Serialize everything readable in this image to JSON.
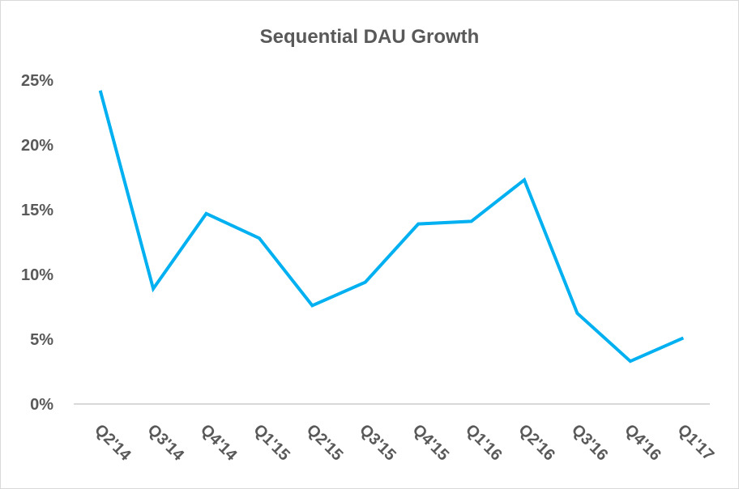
{
  "chart_data": {
    "type": "line",
    "title": "Sequential DAU Growth",
    "xlabel": "",
    "ylabel": "",
    "categories": [
      "Q2'14",
      "Q3'14",
      "Q4'14",
      "Q1'15",
      "Q2'15",
      "Q3'15",
      "Q4'15",
      "Q1'16",
      "Q2'16",
      "Q3'16",
      "Q4'16",
      "Q1'17"
    ],
    "series": [
      {
        "name": "Sequential DAU Growth",
        "color": "#00B0F0",
        "values": [
          24.2,
          8.9,
          14.7,
          12.8,
          7.6,
          9.4,
          13.9,
          14.1,
          17.3,
          7.0,
          3.3,
          5.1
        ]
      }
    ],
    "ylim": [
      0,
      25
    ],
    "yticks": [
      0,
      5,
      10,
      15,
      20,
      25
    ],
    "ytick_labels": [
      "0%",
      "5%",
      "10%",
      "15%",
      "20%",
      "25%"
    ],
    "grid": false,
    "legend": "none"
  }
}
